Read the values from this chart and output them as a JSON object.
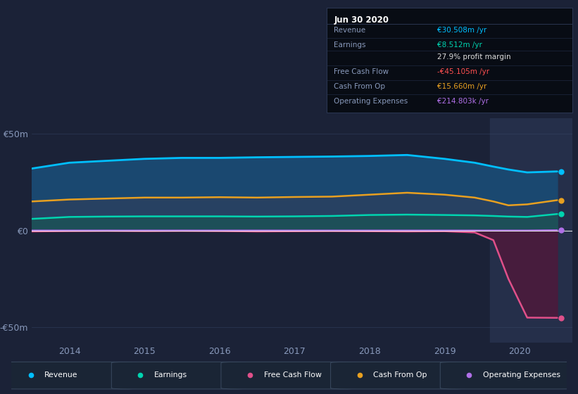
{
  "bg_color": "#1b2237",
  "plot_bg": "#1b2237",
  "highlighted_bg": "#232d47",
  "x_years": [
    2013.5,
    2014.0,
    2014.5,
    2015.0,
    2015.5,
    2016.0,
    2016.5,
    2017.0,
    2017.5,
    2018.0,
    2018.5,
    2019.0,
    2019.4,
    2019.65,
    2019.85,
    2020.1,
    2020.5
  ],
  "revenue": [
    32,
    35,
    36,
    37,
    37.5,
    37.5,
    37.8,
    38,
    38.2,
    38.5,
    39,
    37,
    35,
    33,
    31.5,
    30,
    30.5
  ],
  "earnings": [
    6,
    7,
    7.2,
    7.3,
    7.3,
    7.3,
    7.2,
    7.3,
    7.5,
    8.0,
    8.2,
    8.0,
    7.8,
    7.5,
    7.2,
    7.0,
    8.512
  ],
  "free_cash_flow": [
    -0.5,
    -0.3,
    -0.2,
    -0.3,
    -0.2,
    -0.3,
    -0.5,
    -0.4,
    -0.3,
    -0.4,
    -0.5,
    -0.4,
    -1.0,
    -5.0,
    -25,
    -45,
    -45.105
  ],
  "cash_from_op": [
    15,
    16,
    16.5,
    17,
    17,
    17.2,
    17,
    17.3,
    17.5,
    18.5,
    19.5,
    18.5,
    17,
    15,
    13,
    13.5,
    15.66
  ],
  "operating_expenses": [
    0.05,
    0.05,
    0.05,
    0.05,
    0.05,
    0.05,
    0.05,
    0.05,
    0.05,
    0.05,
    0.05,
    0.05,
    0.05,
    0.05,
    0.05,
    0.05,
    0.2148
  ],
  "colors": {
    "revenue": "#00bfff",
    "earnings": "#00d4b0",
    "free_cash_flow": "#e0508a",
    "cash_from_op": "#e8a020",
    "operating_expenses": "#b070e8",
    "revenue_fill": "#1b4a70",
    "earnings_fill": "#1a6060",
    "fcf_fill_neg": "#5a1840",
    "cashop_fill": "#3a4a20"
  },
  "ylim": [
    -58,
    58
  ],
  "xlim": [
    2013.5,
    2020.7
  ],
  "yticks": [
    -50,
    0,
    50
  ],
  "ytick_labels": [
    "-€50m",
    "€0",
    "€50m"
  ],
  "xticks": [
    2014,
    2015,
    2016,
    2017,
    2018,
    2019,
    2020
  ],
  "highlighted_start": 2019.6,
  "info_box": {
    "title": "Jun 30 2020",
    "rows": [
      {
        "label": "Revenue",
        "value": "€30.508m /yr",
        "value_color": "#00bfff"
      },
      {
        "label": "Earnings",
        "value": "€8.512m /yr",
        "value_color": "#00d4b0"
      },
      {
        "label": "",
        "value": "27.9% profit margin",
        "value_color": "#dddddd"
      },
      {
        "label": "Free Cash Flow",
        "value": "-€45.105m /yr",
        "value_color": "#ff5050"
      },
      {
        "label": "Cash From Op",
        "value": "€15.660m /yr",
        "value_color": "#e8a020"
      },
      {
        "label": "Operating Expenses",
        "value": "€214.803k /yr",
        "value_color": "#b070e8"
      }
    ]
  },
  "legend": [
    {
      "label": "Revenue",
      "color": "#00bfff"
    },
    {
      "label": "Earnings",
      "color": "#00d4b0"
    },
    {
      "label": "Free Cash Flow",
      "color": "#e0508a"
    },
    {
      "label": "Cash From Op",
      "color": "#e8a020"
    },
    {
      "label": "Operating Expenses",
      "color": "#b070e8"
    }
  ]
}
